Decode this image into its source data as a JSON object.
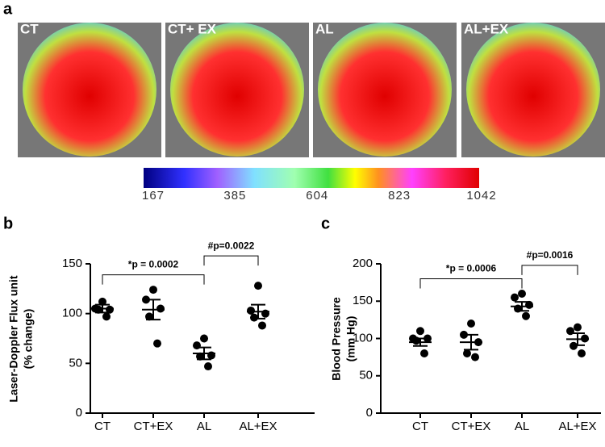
{
  "image_panel": {
    "letter": "a",
    "labels": [
      "CT",
      "CT+ EX",
      "AL",
      "AL+EX"
    ],
    "colorbar": {
      "ticks": [
        167,
        385,
        604,
        823,
        1042
      ],
      "lim": [
        167,
        1042
      ]
    }
  },
  "chart_data": [
    {
      "type": "dotplot",
      "letter": "b",
      "ylabel": [
        "Laser-Doppler Flux unit",
        "(% change)"
      ],
      "categories": [
        "CT",
        "CT+EX",
        "AL",
        "AL+EX"
      ],
      "points": [
        [
          112,
          105,
          104,
          104,
          97
        ],
        [
          124,
          114,
          105,
          97,
          70
        ],
        [
          75,
          68,
          58,
          57,
          47
        ],
        [
          128,
          103,
          100,
          96,
          88
        ]
      ],
      "means": [
        105,
        104,
        60,
        102
      ],
      "errors": [
        4,
        10,
        6,
        7
      ],
      "ylim": [
        0,
        150
      ],
      "yticks": [
        0,
        50,
        100,
        150
      ],
      "brackets": [
        {
          "from": 0,
          "to": 2,
          "y": 139,
          "label": "*p = 0.0002"
        },
        {
          "from": 2,
          "to": 3,
          "y": 158,
          "label": "#p=0.0022"
        }
      ]
    },
    {
      "type": "dotplot",
      "letter": "c",
      "ylabel": [
        "Blood Pressure",
        "(mm Hg)"
      ],
      "categories": [
        "CT",
        "CT+EX",
        "AL",
        "AL+EX"
      ],
      "points": [
        [
          110,
          100,
          100,
          97,
          80
        ],
        [
          120,
          105,
          95,
          80,
          75
        ],
        [
          160,
          155,
          145,
          140,
          130
        ],
        [
          115,
          110,
          100,
          90,
          80
        ]
      ],
      "means": [
        95,
        95,
        143,
        99
      ],
      "errors": [
        5,
        10,
        6,
        8
      ],
      "ylim": [
        0,
        200
      ],
      "yticks": [
        0,
        50,
        100,
        150,
        200
      ],
      "brackets": [
        {
          "from": 0,
          "to": 2,
          "y": 180,
          "label": "*p = 0.0006"
        },
        {
          "from": 2,
          "to": 3,
          "y": 198,
          "label": "#p=0.0016"
        }
      ]
    }
  ]
}
